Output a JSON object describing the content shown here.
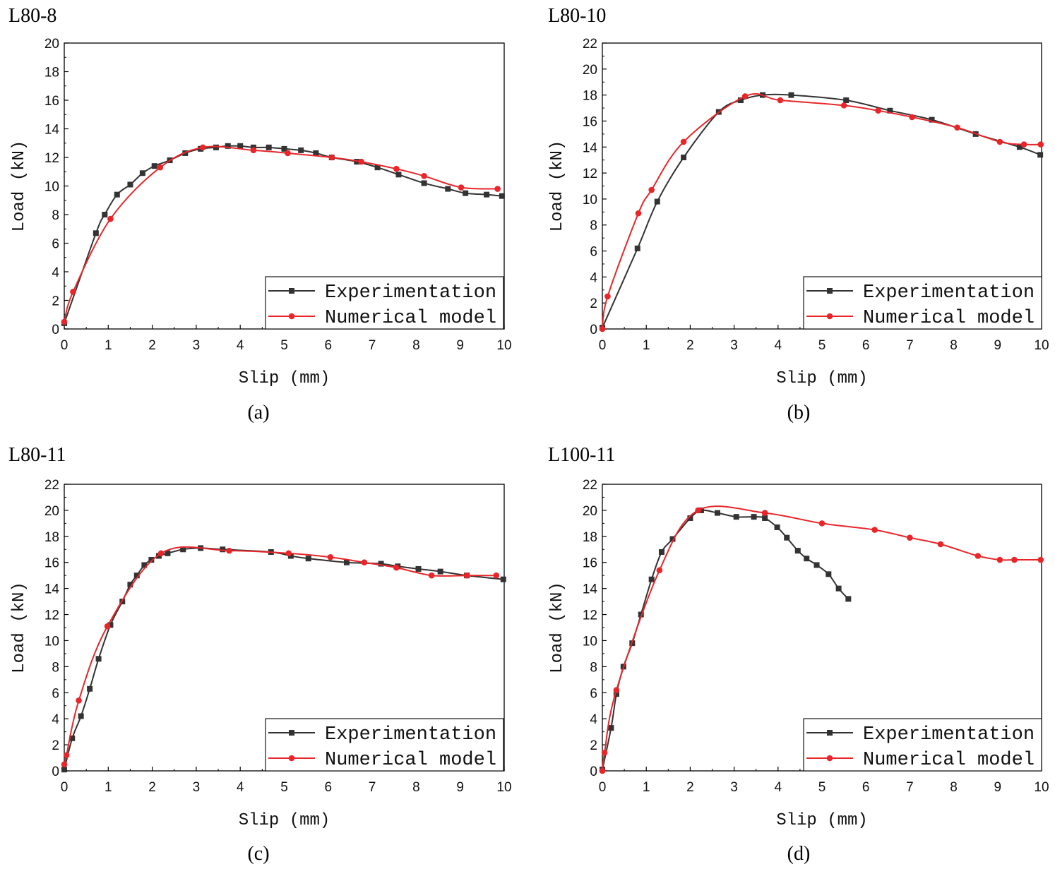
{
  "chart_data": [
    {
      "type": "line",
      "title": "L80-8",
      "caption": "(a)",
      "xlabel": "Slip (mm)",
      "ylabel": "Load (kN)",
      "xlim": [
        0,
        10
      ],
      "ylim": [
        0,
        20
      ],
      "xticks": [
        0,
        1,
        2,
        3,
        4,
        5,
        6,
        7,
        8,
        9,
        10
      ],
      "yticks": [
        0,
        2,
        4,
        6,
        8,
        10,
        12,
        14,
        16,
        18,
        20
      ],
      "legend_position": "bottom-right",
      "series": [
        {
          "name": "Experimentation",
          "color": "#333333",
          "marker": "square",
          "x": [
            0,
            0.72,
            0.92,
            1.2,
            1.5,
            1.78,
            2.05,
            2.4,
            2.75,
            3.1,
            3.45,
            3.72,
            4.0,
            4.3,
            4.65,
            5.0,
            5.38,
            5.72,
            6.08,
            6.65,
            7.12,
            7.6,
            8.18,
            8.72,
            9.12,
            9.6,
            9.95
          ],
          "y": [
            0.4,
            6.7,
            8.0,
            9.4,
            10.1,
            10.9,
            11.4,
            11.8,
            12.3,
            12.6,
            12.7,
            12.8,
            12.8,
            12.7,
            12.7,
            12.6,
            12.5,
            12.3,
            12.0,
            11.7,
            11.3,
            10.8,
            10.2,
            9.8,
            9.5,
            9.4,
            9.3
          ]
        },
        {
          "name": "Numerical model",
          "color": "#e8262a",
          "marker": "circle",
          "x": [
            0,
            0.2,
            1.05,
            2.18,
            3.15,
            4.3,
            5.08,
            6.08,
            6.75,
            7.55,
            8.18,
            9.02,
            9.85
          ],
          "y": [
            0.5,
            2.6,
            7.7,
            11.3,
            12.7,
            12.5,
            12.3,
            12.0,
            11.7,
            11.2,
            10.7,
            9.9,
            9.8
          ]
        }
      ]
    },
    {
      "type": "line",
      "title": "L80-10",
      "caption": "(b)",
      "xlabel": "Slip (mm)",
      "ylabel": "Load (kN)",
      "xlim": [
        0,
        10
      ],
      "ylim": [
        0,
        22
      ],
      "xticks": [
        0,
        1,
        2,
        3,
        4,
        5,
        6,
        7,
        8,
        9,
        10
      ],
      "yticks": [
        0,
        2,
        4,
        6,
        8,
        10,
        12,
        14,
        16,
        18,
        20,
        22
      ],
      "legend_position": "bottom-right",
      "series": [
        {
          "name": "Experimentation",
          "color": "#333333",
          "marker": "square",
          "x": [
            0,
            0.8,
            1.25,
            1.85,
            2.65,
            3.15,
            3.65,
            4.3,
            5.55,
            6.55,
            7.5,
            8.5,
            9.5,
            9.97
          ],
          "y": [
            0.1,
            6.2,
            9.8,
            13.2,
            16.7,
            17.6,
            18.0,
            18.0,
            17.6,
            16.8,
            16.1,
            15.0,
            14.0,
            13.4
          ]
        },
        {
          "name": "Numerical model",
          "color": "#e8262a",
          "marker": "circle",
          "x": [
            0,
            0.12,
            0.82,
            1.12,
            1.85,
            3.25,
            4.05,
            5.5,
            6.28,
            7.05,
            8.08,
            9.05,
            9.6,
            9.98
          ],
          "y": [
            0,
            2.5,
            8.9,
            10.7,
            14.4,
            17.9,
            17.6,
            17.2,
            16.8,
            16.3,
            15.5,
            14.4,
            14.2,
            14.2
          ]
        }
      ]
    },
    {
      "type": "line",
      "title": "L80-11",
      "caption": "(c)",
      "xlabel": "Slip (mm)",
      "ylabel": "Load (kN)",
      "xlim": [
        0,
        10
      ],
      "ylim": [
        0,
        22
      ],
      "xticks": [
        0,
        1,
        2,
        3,
        4,
        5,
        6,
        7,
        8,
        9,
        10
      ],
      "yticks": [
        0,
        2,
        4,
        6,
        8,
        10,
        12,
        14,
        16,
        18,
        20,
        22
      ],
      "legend_position": "bottom-right",
      "series": [
        {
          "name": "Experimentation",
          "color": "#333333",
          "marker": "square",
          "x": [
            0,
            0.18,
            0.38,
            0.58,
            0.78,
            1.05,
            1.32,
            1.5,
            1.65,
            1.82,
            1.98,
            2.15,
            2.35,
            2.7,
            3.1,
            3.6,
            4.7,
            5.15,
            5.55,
            6.42,
            7.2,
            7.58,
            8.05,
            8.55,
            9.15,
            9.98
          ],
          "y": [
            0.1,
            2.5,
            4.2,
            6.3,
            8.6,
            11.2,
            13.0,
            14.3,
            15.0,
            15.8,
            16.2,
            16.5,
            16.7,
            17.0,
            17.1,
            17.0,
            16.8,
            16.5,
            16.3,
            16.0,
            15.9,
            15.7,
            15.5,
            15.3,
            15.0,
            14.7
          ]
        },
        {
          "name": "Numerical model",
          "color": "#e8262a",
          "marker": "circle",
          "x": [
            0,
            0.05,
            0.33,
            0.98,
            2.2,
            3.75,
            5.1,
            6.05,
            6.82,
            7.55,
            8.35,
            9.15,
            9.82
          ],
          "y": [
            0.5,
            1.2,
            5.4,
            11.1,
            16.7,
            16.9,
            16.7,
            16.4,
            16.0,
            15.6,
            15.0,
            15.0,
            15.0
          ]
        }
      ]
    },
    {
      "type": "line",
      "title": "L100-11",
      "caption": "(d)",
      "xlabel": "Slip (mm)",
      "ylabel": "Load (kN)",
      "xlim": [
        0,
        10
      ],
      "ylim": [
        0,
        22
      ],
      "xticks": [
        0,
        1,
        2,
        3,
        4,
        5,
        6,
        7,
        8,
        9,
        10
      ],
      "yticks": [
        0,
        2,
        4,
        6,
        8,
        10,
        12,
        14,
        16,
        18,
        20,
        22
      ],
      "legend_position": "bottom-right",
      "series": [
        {
          "name": "Experimentation",
          "color": "#333333",
          "marker": "square",
          "x": [
            0,
            0.2,
            0.32,
            0.48,
            0.68,
            0.88,
            1.12,
            1.35,
            1.6,
            2.0,
            2.25,
            2.62,
            3.05,
            3.45,
            3.7,
            3.98,
            4.2,
            4.45,
            4.65,
            4.88,
            5.15,
            5.38,
            5.6
          ],
          "y": [
            0.1,
            3.3,
            5.9,
            8.0,
            9.8,
            12.0,
            14.7,
            16.8,
            17.8,
            19.4,
            20.0,
            19.8,
            19.5,
            19.5,
            19.4,
            18.7,
            17.9,
            16.9,
            16.3,
            15.8,
            15.1,
            14.0,
            13.2
          ]
        },
        {
          "name": "Numerical model",
          "color": "#e8262a",
          "marker": "circle",
          "x": [
            0,
            0.05,
            0.32,
            1.3,
            2.18,
            3.7,
            5.0,
            6.2,
            7.0,
            7.7,
            8.55,
            9.05,
            9.38,
            9.98
          ],
          "y": [
            0,
            1.4,
            6.2,
            15.4,
            20.0,
            19.8,
            19.0,
            18.5,
            17.9,
            17.4,
            16.5,
            16.2,
            16.2,
            16.2
          ]
        }
      ]
    }
  ]
}
